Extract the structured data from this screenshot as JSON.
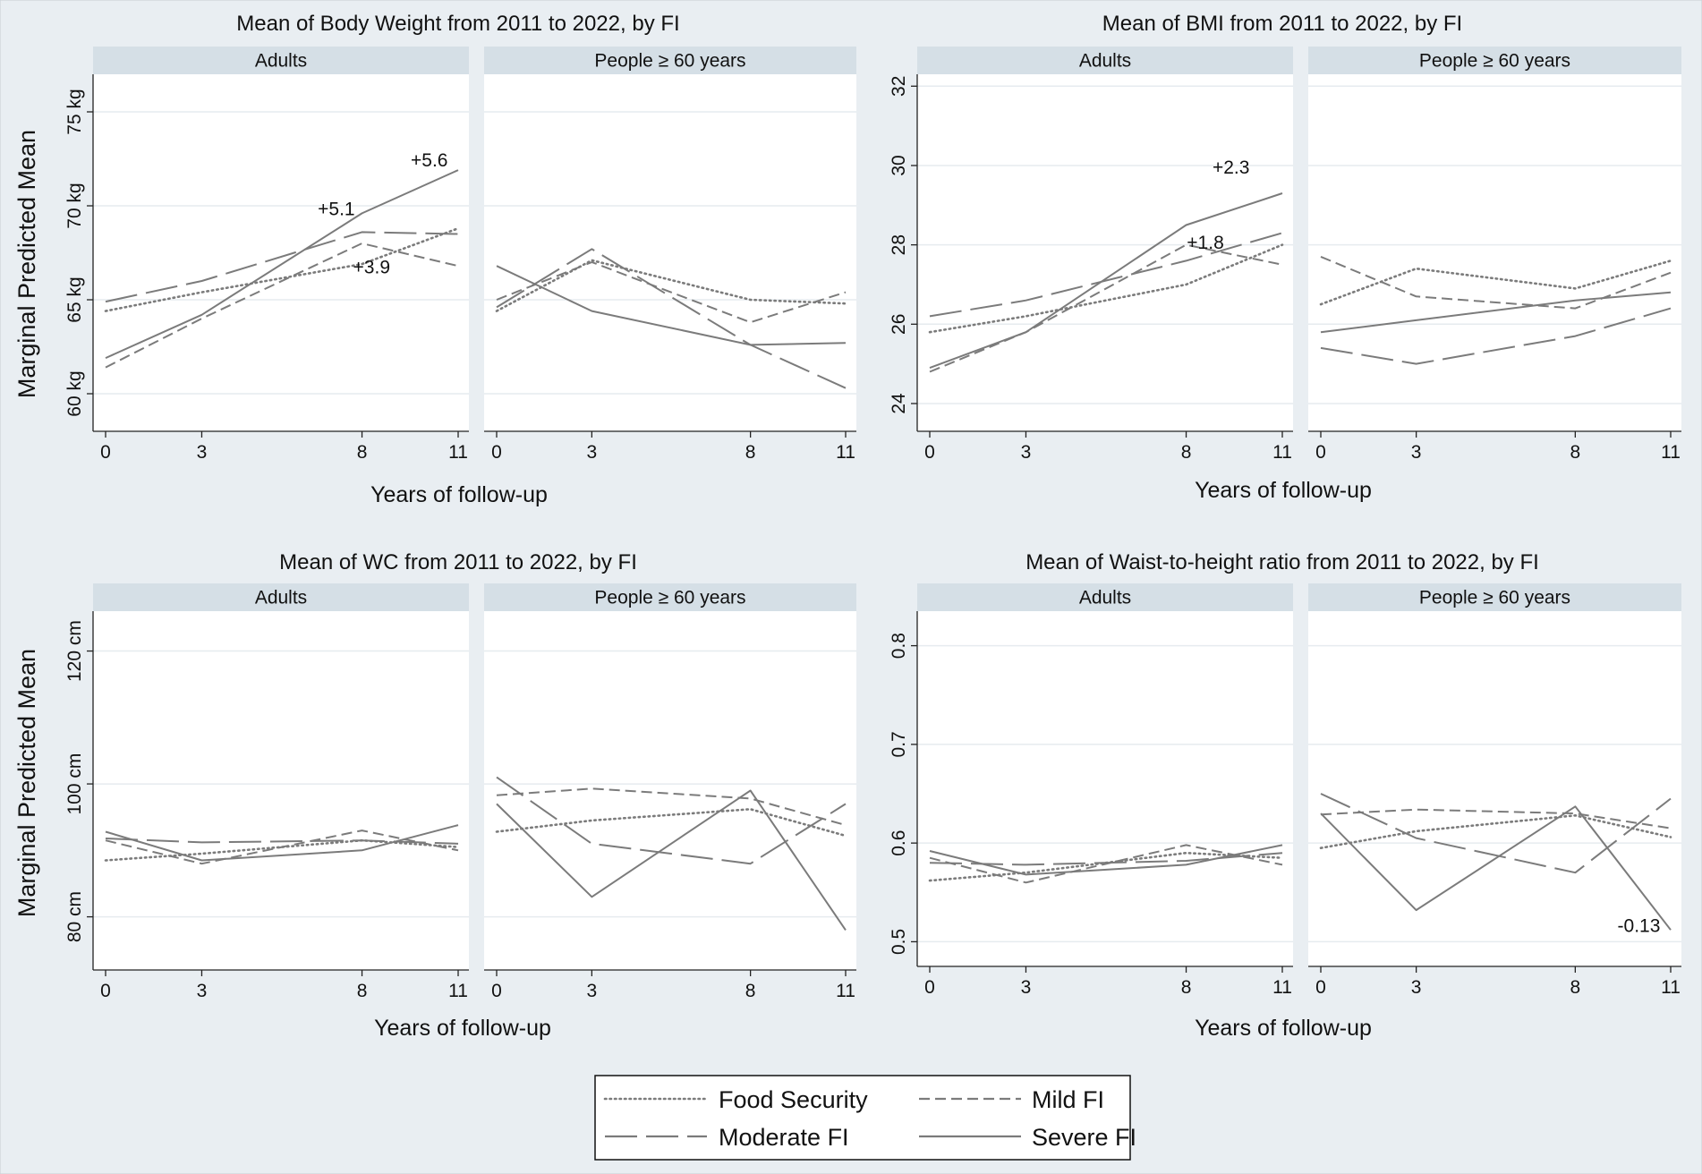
{
  "figure": {
    "y_label": "Marginal Predicted Mean",
    "x_label": "Years of follow-up",
    "legend": [
      {
        "key": "fs",
        "label": "Food Security"
      },
      {
        "key": "mild",
        "label": "Mild FI"
      },
      {
        "key": "mod",
        "label": "Moderate FI"
      },
      {
        "key": "sev",
        "label": "Severe FI"
      }
    ]
  },
  "colors": {
    "background": "#e9eef2",
    "panel": "#ffffff",
    "strip": "#d5dfe6",
    "grid": "#e6ebef",
    "line": "#7b7b7b",
    "text": "#111111"
  },
  "chart_data": [
    {
      "type": "line",
      "title": "Mean of Body Weight from 2011 to 2022, by FI",
      "xlabel": "Years of follow-up",
      "ylabel": "Marginal Predicted Mean",
      "ylim": [
        58,
        77
      ],
      "yticks": [
        60,
        65,
        70,
        75
      ],
      "ytick_labels": [
        "60 kg",
        "65 kg",
        "70 kg",
        "75 kg"
      ],
      "categories": [
        0,
        3,
        8,
        11
      ],
      "panels": [
        {
          "label": "Adults",
          "series": [
            {
              "name": "Food Security",
              "values": [
                64.4,
                65.4,
                66.9,
                68.8
              ]
            },
            {
              "name": "Mild FI",
              "values": [
                61.4,
                64.0,
                68.0,
                66.8
              ]
            },
            {
              "name": "Moderate FI",
              "values": [
                64.9,
                66.0,
                68.6,
                68.5
              ]
            },
            {
              "name": "Severe FI",
              "values": [
                61.9,
                64.2,
                69.6,
                71.9
              ]
            }
          ],
          "annotations": [
            {
              "text": "+5.1",
              "x": 7.2,
              "y": 69.5
            },
            {
              "text": "+5.6",
              "x": 10.1,
              "y": 72.1
            },
            {
              "text": "+3.9",
              "x": 8.3,
              "y": 66.4
            }
          ]
        },
        {
          "label": "People ≥ 60 years",
          "series": [
            {
              "name": "Food Security",
              "values": [
                64.4,
                67.1,
                65.0,
                64.8
              ]
            },
            {
              "name": "Mild FI",
              "values": [
                65.0,
                67.0,
                63.8,
                65.4
              ]
            },
            {
              "name": "Moderate FI",
              "values": [
                64.6,
                67.7,
                62.6,
                60.3
              ]
            },
            {
              "name": "Severe FI",
              "values": [
                66.8,
                64.4,
                62.6,
                62.7
              ]
            }
          ],
          "annotations": []
        }
      ]
    },
    {
      "type": "line",
      "title": "Mean of BMI from 2011 to 2022, by FI",
      "xlabel": "Years of follow-up",
      "ylabel": "",
      "ylim": [
        23.3,
        32.3
      ],
      "yticks": [
        24,
        26,
        28,
        30,
        32
      ],
      "ytick_labels": [
        "24",
        "26",
        "28",
        "30",
        "32"
      ],
      "categories": [
        0,
        3,
        8,
        11
      ],
      "panels": [
        {
          "label": "Adults",
          "series": [
            {
              "name": "Food Security",
              "values": [
                25.8,
                26.2,
                27.0,
                28.0
              ]
            },
            {
              "name": "Mild FI",
              "values": [
                24.8,
                25.8,
                28.0,
                27.5
              ]
            },
            {
              "name": "Moderate FI",
              "values": [
                26.2,
                26.6,
                27.6,
                28.3
              ]
            },
            {
              "name": "Severe FI",
              "values": [
                24.9,
                25.8,
                28.5,
                29.3
              ]
            }
          ],
          "annotations": [
            {
              "text": "+2.3",
              "x": 9.4,
              "y": 29.8
            },
            {
              "text": "+1.8",
              "x": 8.6,
              "y": 27.9
            }
          ]
        },
        {
          "label": "People ≥ 60 years",
          "series": [
            {
              "name": "Food Security",
              "values": [
                26.5,
                27.4,
                26.9,
                27.6
              ]
            },
            {
              "name": "Mild FI",
              "values": [
                27.7,
                26.7,
                26.4,
                27.3
              ]
            },
            {
              "name": "Moderate FI",
              "values": [
                25.4,
                25.0,
                25.7,
                26.4
              ]
            },
            {
              "name": "Severe FI",
              "values": [
                25.8,
                26.1,
                26.6,
                26.8
              ]
            }
          ],
          "annotations": []
        }
      ]
    },
    {
      "type": "line",
      "title": "Mean of WC from 2011 to 2022, by FI",
      "xlabel": "Years of follow-up",
      "ylabel": "Marginal Predicted Mean",
      "ylim": [
        72,
        126
      ],
      "yticks": [
        80,
        100,
        120
      ],
      "ytick_labels": [
        "80 cm",
        "100 cm",
        "120 cm"
      ],
      "categories": [
        0,
        3,
        8,
        11
      ],
      "panels": [
        {
          "label": "Adults",
          "series": [
            {
              "name": "Food Security",
              "values": [
                88.5,
                89.5,
                91.5,
                90.5
              ]
            },
            {
              "name": "Mild FI",
              "values": [
                91.5,
                88.0,
                93.0,
                90.0
              ]
            },
            {
              "name": "Moderate FI",
              "values": [
                91.8,
                91.2,
                91.5,
                91.0
              ]
            },
            {
              "name": "Severe FI",
              "values": [
                92.8,
                88.5,
                90.0,
                93.8
              ]
            }
          ],
          "annotations": []
        },
        {
          "label": "People ≥ 60 years",
          "series": [
            {
              "name": "Food Security",
              "values": [
                92.8,
                94.5,
                96.2,
                92.2
              ]
            },
            {
              "name": "Mild FI",
              "values": [
                98.3,
                99.3,
                97.8,
                93.8
              ]
            },
            {
              "name": "Moderate FI",
              "values": [
                101.0,
                91.0,
                88.0,
                97.0
              ]
            },
            {
              "name": "Severe FI",
              "values": [
                97.0,
                83.0,
                99.0,
                78.0
              ]
            }
          ],
          "annotations": []
        }
      ]
    },
    {
      "type": "line",
      "title": "Mean of Waist-to-height ratio from 2011 to 2022, by FI",
      "xlabel": "Years of follow-up",
      "ylabel": "",
      "ylim": [
        0.475,
        0.835
      ],
      "yticks": [
        0.5,
        0.6,
        0.7,
        0.8
      ],
      "ytick_labels": [
        "0.5",
        "0.6",
        "0.7",
        "0.8"
      ],
      "categories": [
        0,
        3,
        8,
        11
      ],
      "panels": [
        {
          "label": "Adults",
          "series": [
            {
              "name": "Food Security",
              "values": [
                0.562,
                0.57,
                0.59,
                0.585
              ]
            },
            {
              "name": "Mild FI",
              "values": [
                0.585,
                0.56,
                0.598,
                0.578
              ]
            },
            {
              "name": "Moderate FI",
              "values": [
                0.58,
                0.578,
                0.582,
                0.59
              ]
            },
            {
              "name": "Severe FI",
              "values": [
                0.592,
                0.568,
                0.578,
                0.598
              ]
            }
          ],
          "annotations": []
        },
        {
          "label": "People ≥ 60 years",
          "series": [
            {
              "name": "Food Security",
              "values": [
                0.595,
                0.612,
                0.628,
                0.606
              ]
            },
            {
              "name": "Mild FI",
              "values": [
                0.629,
                0.634,
                0.63,
                0.615
              ]
            },
            {
              "name": "Moderate FI",
              "values": [
                0.65,
                0.605,
                0.57,
                0.645
              ]
            },
            {
              "name": "Severe FI",
              "values": [
                0.63,
                0.532,
                0.637,
                0.512
              ]
            }
          ],
          "annotations": [
            {
              "text": "-0.13",
              "x": 10.0,
              "y": 0.51
            }
          ]
        }
      ]
    }
  ]
}
